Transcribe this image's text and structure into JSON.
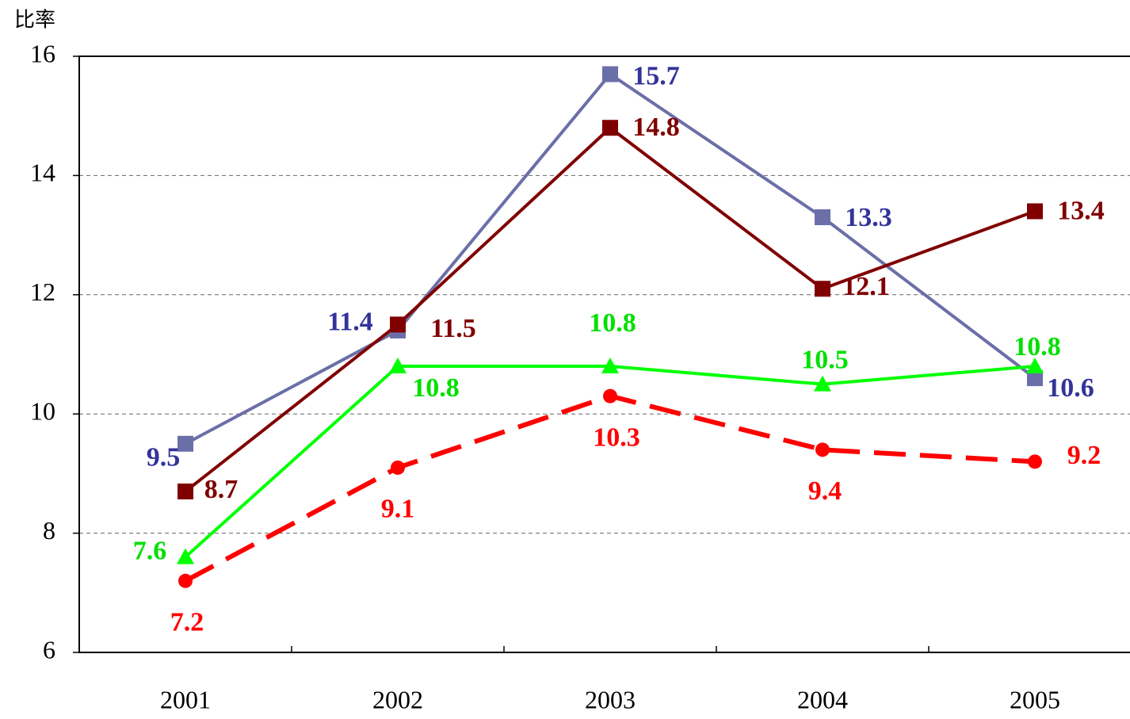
{
  "chart_data": {
    "type": "line",
    "y_label": "比率",
    "categories": [
      "2001",
      "2002",
      "2003",
      "2004",
      "2005"
    ],
    "series": [
      {
        "color": "#6b6fa8",
        "label_color": "#333399",
        "marker": "square",
        "dashed": false,
        "values": [
          9.5,
          11.4,
          15.7,
          13.3,
          10.6
        ]
      },
      {
        "color": "#800000",
        "label_color": "#800000",
        "marker": "square",
        "dashed": false,
        "values": [
          8.7,
          11.5,
          14.8,
          12.1,
          13.4
        ]
      },
      {
        "color": "#00ff00",
        "label_color": "#00e000",
        "marker": "triangle",
        "dashed": false,
        "values": [
          7.6,
          10.8,
          10.8,
          10.5,
          10.8
        ]
      },
      {
        "color": "#ff0000",
        "label_color": "#ff0000",
        "marker": "circle",
        "dashed": true,
        "values": [
          7.2,
          9.1,
          10.3,
          9.4,
          9.2
        ]
      }
    ],
    "ylim": [
      6,
      16
    ],
    "yticks": [
      6,
      8,
      10,
      12,
      14,
      16
    ],
    "grid": true
  }
}
